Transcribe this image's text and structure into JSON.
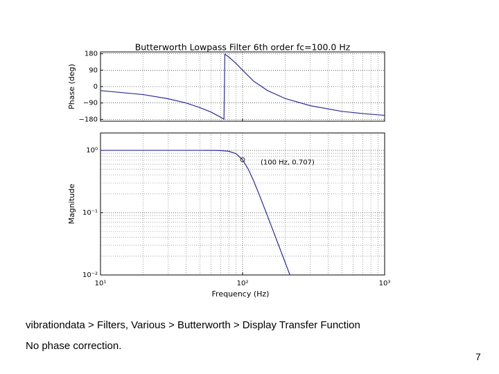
{
  "chart_data": [
    {
      "type": "line",
      "title": "Butterworth Lowpass Filter 6th order fc=100.0 Hz",
      "y_label": "Phase (deg)",
      "xlog": true,
      "sharex": true,
      "grid": true,
      "ylim": [
        -190,
        190
      ],
      "yticks": [
        180,
        90,
        0,
        {
          "value": -90,
          "label": "−90"
        },
        {
          "value": -180,
          "label": "−180"
        }
      ],
      "series": [
        {
          "color": "#2b2b9a",
          "x": [
            10,
            20,
            30,
            40,
            50,
            60,
            70,
            74,
            75,
            80,
            90,
            100,
            120,
            150,
            200,
            300,
            500,
            700,
            1000
          ],
          "values": [
            -22,
            -44,
            -67,
            -90,
            -115,
            -140,
            -168,
            -179,
            178,
            162,
            127,
            90,
            29,
            -22,
            -66,
            -105,
            -136,
            -148,
            -158
          ]
        }
      ]
    },
    {
      "type": "line",
      "y_label": "Magnitude",
      "x_label": "Frequency (Hz)",
      "xlog": true,
      "ylog": true,
      "grid": true,
      "xlim": [
        10,
        1000
      ],
      "xticks": [
        {
          "value": 10,
          "label": "10¹"
        },
        {
          "value": 100,
          "label": "10²"
        },
        {
          "value": 1000,
          "label": "10³"
        }
      ],
      "ylim": [
        0.01,
        1.9
      ],
      "yticks": [
        {
          "value": 1,
          "label": "10⁰"
        },
        {
          "value": 0.1,
          "label": "10⁻¹"
        },
        {
          "value": 0.01,
          "label": "10⁻²"
        }
      ],
      "series": [
        {
          "color": "#2b2b9a",
          "x": [
            10,
            20,
            50,
            60,
            70,
            80,
            90,
            100,
            110,
            120,
            130,
            150,
            170,
            200,
            215
          ],
          "values": [
            1,
            1,
            1,
            0.999,
            0.993,
            0.967,
            0.883,
            0.707,
            0.492,
            0.318,
            0.203,
            0.0876,
            0.0414,
            0.0156,
            0.0101
          ]
        }
      ],
      "annotation": {
        "text": "(100 Hz, 0.707)",
        "x": 100,
        "y": 0.707
      }
    }
  ],
  "slide": {
    "caption": "vibrationdata > Filters, Various > Butterworth > Display Transfer Function",
    "note": "No phase correction.",
    "page_number": "7"
  }
}
